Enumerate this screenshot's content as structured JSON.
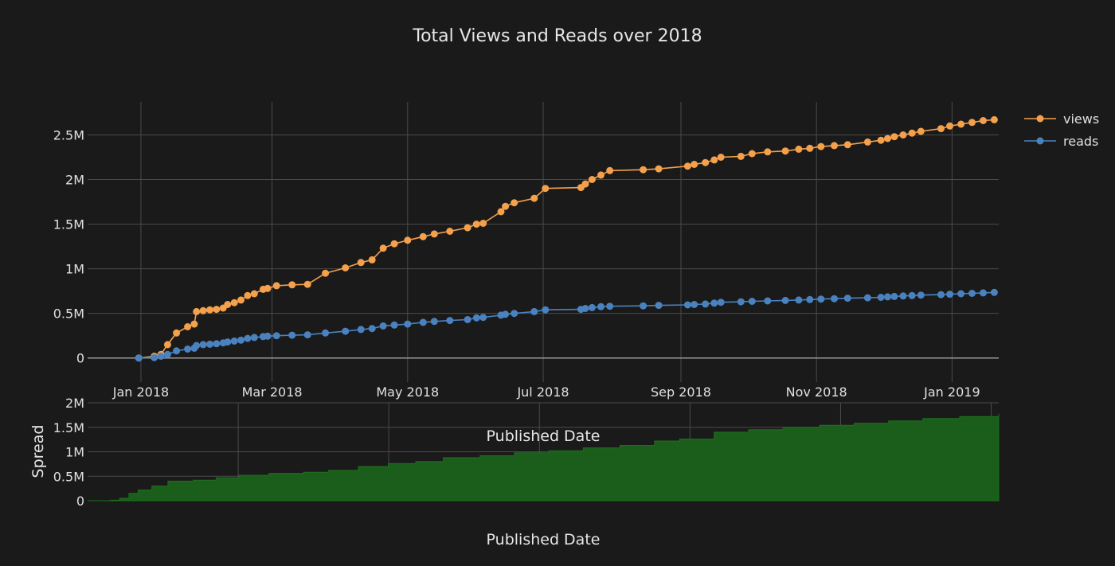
{
  "chart_data": [
    {
      "type": "line",
      "title": "Total Views and Reads over 2018",
      "xlabel": "",
      "ylabel": "",
      "x_ticks": [
        "Jan 2018",
        "Mar 2018",
        "May 2018",
        "Jul 2018",
        "Sep 2018",
        "Nov 2018",
        "Jan 2019"
      ],
      "y_ticks": [
        "0",
        "0.5M",
        "1M",
        "1.5M",
        "2M",
        "2.5M"
      ],
      "xlim": [
        "2017-12-08",
        "2019-01-22"
      ],
      "ylim": [
        -270000,
        2870000
      ],
      "grid": true,
      "legend_position": "top-right",
      "series": [
        {
          "name": "views",
          "color": "#f5a04a",
          "points": [
            [
              "2017-12-31",
              0
            ],
            [
              "2018-01-07",
              20000
            ],
            [
              "2018-01-10",
              40000
            ],
            [
              "2018-01-13",
              150000
            ],
            [
              "2018-01-17",
              280000
            ],
            [
              "2018-01-22",
              350000
            ],
            [
              "2018-01-25",
              380000
            ],
            [
              "2018-01-26",
              520000
            ],
            [
              "2018-01-29",
              530000
            ],
            [
              "2018-02-01",
              540000
            ],
            [
              "2018-02-04",
              545000
            ],
            [
              "2018-02-07",
              560000
            ],
            [
              "2018-02-09",
              600000
            ],
            [
              "2018-02-12",
              620000
            ],
            [
              "2018-02-15",
              650000
            ],
            [
              "2018-02-18",
              700000
            ],
            [
              "2018-02-21",
              720000
            ],
            [
              "2018-02-25",
              770000
            ],
            [
              "2018-02-27",
              780000
            ],
            [
              "2018-03-03",
              810000
            ],
            [
              "2018-03-10",
              820000
            ],
            [
              "2018-03-17",
              825000
            ],
            [
              "2018-03-25",
              950000
            ],
            [
              "2018-04-03",
              1010000
            ],
            [
              "2018-04-10",
              1070000
            ],
            [
              "2018-04-15",
              1100000
            ],
            [
              "2018-04-20",
              1230000
            ],
            [
              "2018-04-25",
              1280000
            ],
            [
              "2018-05-01",
              1320000
            ],
            [
              "2018-05-08",
              1360000
            ],
            [
              "2018-05-13",
              1390000
            ],
            [
              "2018-05-20",
              1420000
            ],
            [
              "2018-05-28",
              1460000
            ],
            [
              "2018-06-01",
              1500000
            ],
            [
              "2018-06-04",
              1510000
            ],
            [
              "2018-06-12",
              1640000
            ],
            [
              "2018-06-14",
              1700000
            ],
            [
              "2018-06-18",
              1740000
            ],
            [
              "2018-06-27",
              1790000
            ],
            [
              "2018-07-02",
              1900000
            ],
            [
              "2018-07-18",
              1910000
            ],
            [
              "2018-07-20",
              1950000
            ],
            [
              "2018-07-23",
              2000000
            ],
            [
              "2018-07-27",
              2050000
            ],
            [
              "2018-07-31",
              2100000
            ],
            [
              "2018-08-15",
              2110000
            ],
            [
              "2018-08-22",
              2120000
            ],
            [
              "2018-09-04",
              2150000
            ],
            [
              "2018-09-07",
              2170000
            ],
            [
              "2018-09-12",
              2190000
            ],
            [
              "2018-09-16",
              2220000
            ],
            [
              "2018-09-19",
              2250000
            ],
            [
              "2018-09-28",
              2260000
            ],
            [
              "2018-10-03",
              2290000
            ],
            [
              "2018-10-10",
              2310000
            ],
            [
              "2018-10-18",
              2320000
            ],
            [
              "2018-10-24",
              2340000
            ],
            [
              "2018-10-29",
              2350000
            ],
            [
              "2018-11-03",
              2370000
            ],
            [
              "2018-11-09",
              2380000
            ],
            [
              "2018-11-15",
              2390000
            ],
            [
              "2018-11-24",
              2420000
            ],
            [
              "2018-11-30",
              2440000
            ],
            [
              "2018-12-03",
              2460000
            ],
            [
              "2018-12-06",
              2480000
            ],
            [
              "2018-12-10",
              2500000
            ],
            [
              "2018-12-14",
              2520000
            ],
            [
              "2018-12-18",
              2540000
            ],
            [
              "2018-12-27",
              2570000
            ],
            [
              "2018-12-31",
              2600000
            ],
            [
              "2019-01-05",
              2620000
            ],
            [
              "2019-01-10",
              2640000
            ],
            [
              "2019-01-15",
              2660000
            ],
            [
              "2019-01-20",
              2670000
            ]
          ]
        },
        {
          "name": "reads",
          "color": "#4a82c0",
          "points": [
            [
              "2017-12-31",
              0
            ],
            [
              "2018-01-07",
              5000
            ],
            [
              "2018-01-10",
              20000
            ],
            [
              "2018-01-13",
              40000
            ],
            [
              "2018-01-17",
              80000
            ],
            [
              "2018-01-22",
              100000
            ],
            [
              "2018-01-25",
              110000
            ],
            [
              "2018-01-26",
              140000
            ],
            [
              "2018-01-29",
              150000
            ],
            [
              "2018-02-01",
              155000
            ],
            [
              "2018-02-04",
              160000
            ],
            [
              "2018-02-07",
              170000
            ],
            [
              "2018-02-09",
              180000
            ],
            [
              "2018-02-12",
              190000
            ],
            [
              "2018-02-15",
              200000
            ],
            [
              "2018-02-18",
              220000
            ],
            [
              "2018-02-21",
              230000
            ],
            [
              "2018-02-25",
              240000
            ],
            [
              "2018-02-27",
              245000
            ],
            [
              "2018-03-03",
              250000
            ],
            [
              "2018-03-10",
              255000
            ],
            [
              "2018-03-17",
              260000
            ],
            [
              "2018-03-25",
              280000
            ],
            [
              "2018-04-03",
              300000
            ],
            [
              "2018-04-10",
              320000
            ],
            [
              "2018-04-15",
              330000
            ],
            [
              "2018-04-20",
              360000
            ],
            [
              "2018-04-25",
              370000
            ],
            [
              "2018-05-01",
              380000
            ],
            [
              "2018-05-08",
              400000
            ],
            [
              "2018-05-13",
              410000
            ],
            [
              "2018-05-20",
              420000
            ],
            [
              "2018-05-28",
              430000
            ],
            [
              "2018-06-01",
              450000
            ],
            [
              "2018-06-04",
              455000
            ],
            [
              "2018-06-12",
              480000
            ],
            [
              "2018-06-14",
              490000
            ],
            [
              "2018-06-18",
              500000
            ],
            [
              "2018-06-27",
              520000
            ],
            [
              "2018-07-02",
              540000
            ],
            [
              "2018-07-18",
              545000
            ],
            [
              "2018-07-20",
              555000
            ],
            [
              "2018-07-23",
              565000
            ],
            [
              "2018-07-27",
              575000
            ],
            [
              "2018-07-31",
              580000
            ],
            [
              "2018-08-15",
              585000
            ],
            [
              "2018-08-22",
              590000
            ],
            [
              "2018-09-04",
              595000
            ],
            [
              "2018-09-07",
              600000
            ],
            [
              "2018-09-12",
              605000
            ],
            [
              "2018-09-16",
              615000
            ],
            [
              "2018-09-19",
              625000
            ],
            [
              "2018-09-28",
              630000
            ],
            [
              "2018-10-03",
              635000
            ],
            [
              "2018-10-10",
              640000
            ],
            [
              "2018-10-18",
              645000
            ],
            [
              "2018-10-24",
              650000
            ],
            [
              "2018-10-29",
              655000
            ],
            [
              "2018-11-03",
              660000
            ],
            [
              "2018-11-09",
              665000
            ],
            [
              "2018-11-15",
              670000
            ],
            [
              "2018-11-24",
              675000
            ],
            [
              "2018-11-30",
              680000
            ],
            [
              "2018-12-03",
              685000
            ],
            [
              "2018-12-06",
              690000
            ],
            [
              "2018-12-10",
              695000
            ],
            [
              "2018-12-14",
              700000
            ],
            [
              "2018-12-18",
              705000
            ],
            [
              "2018-12-27",
              710000
            ],
            [
              "2018-12-31",
              715000
            ],
            [
              "2019-01-05",
              720000
            ],
            [
              "2019-01-10",
              725000
            ],
            [
              "2019-01-15",
              730000
            ],
            [
              "2019-01-20",
              735000
            ]
          ]
        }
      ]
    },
    {
      "type": "area",
      "title": "",
      "xlabel": "Published Date",
      "ylabel": "Spread",
      "overlay_label": "Published Date",
      "y_ticks": [
        "0",
        "0.5M",
        "1M",
        "1.5M",
        "2M"
      ],
      "xlim": [
        "2017-12-21",
        "2019-01-22"
      ],
      "ylim": [
        0,
        2000000
      ],
      "grid": true,
      "series": [
        {
          "name": "",
          "color": "#1b5e1b",
          "points": [
            [
              "2017-12-21",
              0
            ],
            [
              "2017-12-31",
              10000
            ],
            [
              "2018-01-04",
              50000
            ],
            [
              "2018-01-08",
              150000
            ],
            [
              "2018-01-12",
              220000
            ],
            [
              "2018-01-18",
              300000
            ],
            [
              "2018-01-25",
              400000
            ],
            [
              "2018-02-05",
              420000
            ],
            [
              "2018-02-15",
              470000
            ],
            [
              "2018-02-25",
              520000
            ],
            [
              "2018-03-10",
              560000
            ],
            [
              "2018-03-25",
              580000
            ],
            [
              "2018-04-05",
              620000
            ],
            [
              "2018-04-18",
              700000
            ],
            [
              "2018-05-01",
              760000
            ],
            [
              "2018-05-13",
              800000
            ],
            [
              "2018-05-25",
              880000
            ],
            [
              "2018-06-10",
              920000
            ],
            [
              "2018-06-25",
              980000
            ],
            [
              "2018-07-10",
              1020000
            ],
            [
              "2018-07-25",
              1080000
            ],
            [
              "2018-08-10",
              1130000
            ],
            [
              "2018-08-25",
              1220000
            ],
            [
              "2018-09-05",
              1260000
            ],
            [
              "2018-09-20",
              1400000
            ],
            [
              "2018-10-05",
              1450000
            ],
            [
              "2018-10-20",
              1500000
            ],
            [
              "2018-11-05",
              1540000
            ],
            [
              "2018-11-20",
              1580000
            ],
            [
              "2018-12-05",
              1630000
            ],
            [
              "2018-12-20",
              1680000
            ],
            [
              "2019-01-05",
              1720000
            ],
            [
              "2019-01-22",
              1780000
            ]
          ]
        }
      ]
    }
  ]
}
